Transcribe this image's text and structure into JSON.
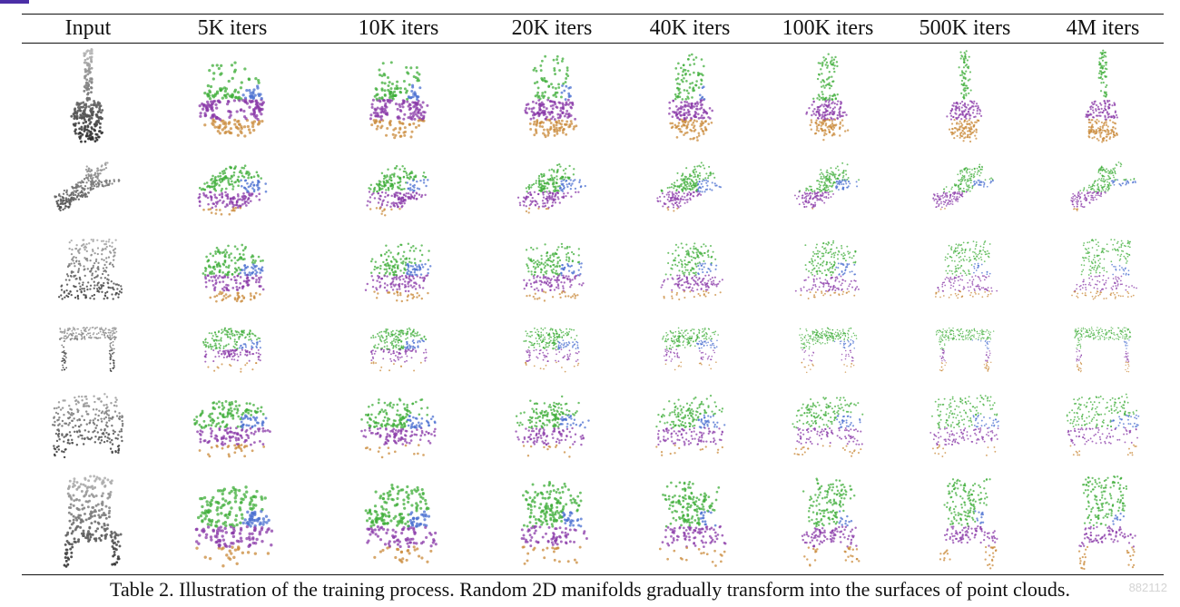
{
  "table": {
    "columns": [
      "Input",
      "5K iters",
      "10K iters",
      "20K iters",
      "40K iters",
      "100K iters",
      "500K iters",
      "4M iters"
    ],
    "rows": [
      {
        "object": "guitar-icon"
      },
      {
        "object": "airplane-icon"
      },
      {
        "object": "laptop-icon"
      },
      {
        "object": "table-icon"
      },
      {
        "object": "sofa-icon"
      },
      {
        "object": "chair-icon"
      }
    ]
  },
  "caption": "Table 2. Illustration of the training process. Random 2D manifolds gradually transform into the surfaces of point clouds.",
  "watermark": "882112",
  "colors": {
    "input_points": "#5a5a5a",
    "manifold_green": "#3fae3a",
    "manifold_orange": "#c98a3a",
    "manifold_purple": "#8a3aa8",
    "manifold_blue": "#4a6fd0",
    "accent_mark": "#4b2fa6"
  }
}
